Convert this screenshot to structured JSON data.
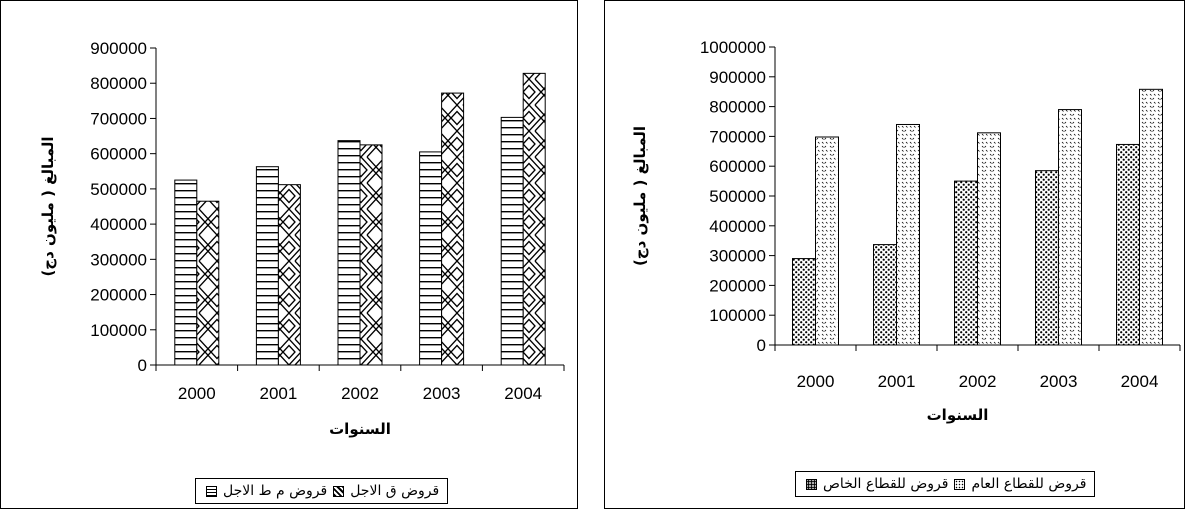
{
  "chart_data": [
    {
      "type": "bar",
      "categories": [
        "2000",
        "2001",
        "2002",
        "2003",
        "2004"
      ],
      "series": [
        {
          "name": "قروض م ط الاجل",
          "values": [
            525000,
            563000,
            637000,
            605000,
            703000
          ],
          "pattern": "hstripes"
        },
        {
          "name": "قروض ق الاجل",
          "values": [
            465000,
            512000,
            625000,
            772000,
            828000
          ],
          "pattern": "zigzag"
        }
      ],
      "xlabel": "السنوات",
      "ylabel": "المبالغ ( مليون دج)",
      "ylim": [
        0,
        900000
      ],
      "yticks": [
        "0",
        "100000",
        "200000",
        "300000",
        "400000",
        "500000",
        "600000",
        "700000",
        "800000",
        "900000"
      ],
      "legend_position": "bottom",
      "grid": false
    },
    {
      "type": "bar",
      "categories": [
        "2000",
        "2001",
        "2002",
        "2003",
        "2004"
      ],
      "series": [
        {
          "name": "قروض للقطاع الخاص",
          "values": [
            290000,
            337000,
            550000,
            585000,
            673000
          ],
          "pattern": "dots"
        },
        {
          "name": "قروض للقطاع العام",
          "values": [
            698000,
            740000,
            712000,
            790000,
            858000
          ],
          "pattern": "light-dots"
        }
      ],
      "xlabel": "السنوات",
      "ylabel": "المبالغ ( مليون دج)",
      "ylim": [
        0,
        1000000
      ],
      "yticks": [
        "0",
        "100000",
        "200000",
        "300000",
        "400000",
        "500000",
        "600000",
        "700000",
        "800000",
        "900000",
        "1000000"
      ],
      "legend_position": "bottom",
      "grid": false
    }
  ]
}
